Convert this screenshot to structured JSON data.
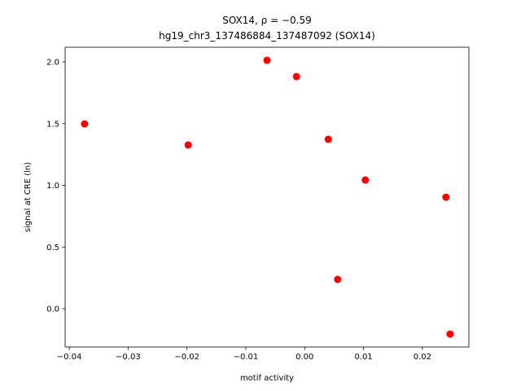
{
  "chart_data": {
    "type": "scatter",
    "title": "SOX14, ρ = −0.59",
    "subtitle": "hg19_chr3_137486884_137487092 (SOX14)",
    "x_label": "motif activity",
    "y_label": "signal at CRE (ln)",
    "color": "#ff0000",
    "x": [
      -0.0374,
      -0.0198,
      -0.0064,
      -0.0014,
      0.004,
      0.0103,
      0.0056,
      0.024,
      0.0247
    ],
    "values": [
      1.498,
      1.327,
      2.013,
      1.881,
      1.373,
      1.043,
      0.238,
      0.904,
      -0.205
    ],
    "xlim": [
      -0.0407,
      0.0279
    ],
    "ylim": [
      -0.31,
      2.119
    ],
    "xticks": [
      {
        "value": -0.04,
        "label": "−0.04"
      },
      {
        "value": -0.03,
        "label": "−0.03"
      },
      {
        "value": -0.02,
        "label": "−0.02"
      },
      {
        "value": -0.01,
        "label": "−0.01"
      },
      {
        "value": 0,
        "label": "0.00"
      },
      {
        "value": 0.01,
        "label": "0.01"
      },
      {
        "value": 0.02,
        "label": "0.02"
      }
    ],
    "yticks": [
      {
        "value": 0,
        "label": "0.0"
      },
      {
        "value": 0.5,
        "label": "0.5"
      },
      {
        "value": 1,
        "label": "1.0"
      },
      {
        "value": 1.5,
        "label": "1.5"
      },
      {
        "value": 2,
        "label": "2.0"
      }
    ]
  }
}
